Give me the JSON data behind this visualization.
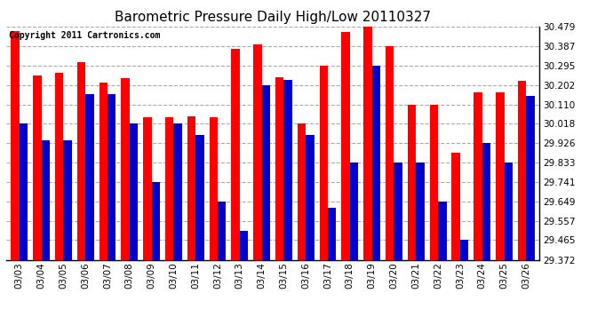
{
  "title": "Barometric Pressure Daily High/Low 20110327",
  "copyright": "Copyright 2011 Cartronics.com",
  "dates": [
    "03/03",
    "03/04",
    "03/05",
    "03/06",
    "03/07",
    "03/08",
    "03/09",
    "03/10",
    "03/11",
    "03/12",
    "03/13",
    "03/14",
    "03/15",
    "03/16",
    "03/17",
    "03/18",
    "03/19",
    "03/20",
    "03/21",
    "03/22",
    "03/23",
    "03/24",
    "03/25",
    "03/26"
  ],
  "highs": [
    30.46,
    30.245,
    30.26,
    30.31,
    30.215,
    30.235,
    30.05,
    30.05,
    30.055,
    30.05,
    30.375,
    30.395,
    30.24,
    30.018,
    30.295,
    30.455,
    30.48,
    30.387,
    30.11,
    30.11,
    29.88,
    30.165,
    30.165,
    30.22
  ],
  "lows": [
    30.018,
    29.94,
    29.94,
    30.16,
    30.16,
    30.018,
    29.74,
    30.018,
    29.965,
    29.65,
    29.51,
    30.2,
    30.228,
    29.965,
    29.618,
    29.833,
    30.295,
    29.833,
    29.833,
    29.649,
    29.465,
    29.926,
    29.833,
    30.15
  ],
  "ylim_min": 29.372,
  "ylim_max": 30.479,
  "yticks": [
    29.372,
    29.465,
    29.557,
    29.649,
    29.741,
    29.833,
    29.926,
    30.018,
    30.11,
    30.202,
    30.295,
    30.387,
    30.479
  ],
  "bar_width": 0.38,
  "high_color": "#ff0000",
  "low_color": "#0000cc",
  "bg_color": "#ffffff",
  "grid_color": "#aaaaaa",
  "title_fontsize": 11,
  "copyright_fontsize": 7
}
